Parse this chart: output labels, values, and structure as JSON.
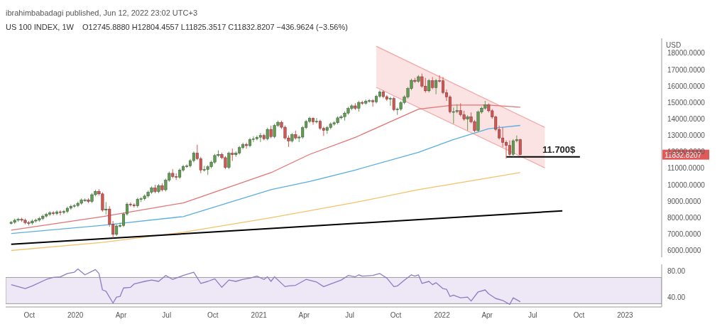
{
  "chart_data": [
    {
      "type": "candlestick",
      "title": "US 100 INDEX, 1W",
      "subtitle": "O12745.8880 H12804.4557 L11825.3517 C11832.8207 −436.9624 (−3.56%)",
      "ylabel": "USD",
      "annotations": [
        "ibrahimbabadagi published, Jun 12, 2022 23:02 UTC+3",
        {
          "text": "11.700$",
          "x": "2022-08-22",
          "y": 11700
        },
        "11832.8207"
      ],
      "xlim": [
        "2019-08-15",
        "2023-03-15"
      ],
      "ylim": [
        5600,
        18900
      ],
      "yticks": [
        {
          "value": 6000,
          "label": "6000.0000"
        },
        {
          "value": 7000,
          "label": "7000.0000"
        },
        {
          "value": 8000,
          "label": "8000.0000"
        },
        {
          "value": 9000,
          "label": "9000.0000"
        },
        {
          "value": 10000,
          "label": "10000.0000"
        },
        {
          "value": 11000,
          "label": "11000.0000"
        },
        {
          "value": 12000,
          "label": "12000.0000"
        },
        {
          "value": 13000,
          "label": "13000.0000"
        },
        {
          "value": 14000,
          "label": "14000.0000"
        },
        {
          "value": 15000,
          "label": "15000.0000"
        },
        {
          "value": 16000,
          "label": "16000.0000"
        },
        {
          "value": 17000,
          "label": "17000.0000"
        },
        {
          "value": 18000,
          "label": "18000.0000"
        }
      ],
      "tick_labels": "y",
      "series": [
        {
          "type": "line",
          "color": "#f4a3a3",
          "x": [
            "2021-08-23",
            "2022-07-25"
          ],
          "values": [
            18420,
            13490
          ],
          "lower": [
            15920,
            11030
          ],
          "upper": [
            18420,
            13490
          ]
        },
        {
          "type": "line",
          "color": "#f4a3a3",
          "x": [
            "2021-08-23",
            "2022-07-25"
          ],
          "values": [
            15920,
            11030
          ]
        },
        {
          "type": "line",
          "color": "#e57373",
          "x": [
            "2019-08-26",
            "2020-02-24",
            "2020-08-03",
            "2021-01-25",
            "2021-04-12",
            "2021-07-12",
            "2021-11-15",
            "2022-01-24",
            "2022-04-04",
            "2022-06-06"
          ],
          "values": [
            7250,
            8070,
            8900,
            10740,
            11850,
            12880,
            14600,
            14850,
            14850,
            14720
          ]
        },
        {
          "type": "line",
          "color": "#5aaee0",
          "x": [
            "2019-08-26",
            "2020-02-24",
            "2020-08-03",
            "2021-01-25",
            "2021-04-12",
            "2021-07-12",
            "2021-11-15",
            "2022-01-24",
            "2022-04-04",
            "2022-06-06"
          ],
          "values": [
            7040,
            7540,
            8070,
            9710,
            10200,
            10900,
            11970,
            12750,
            13410,
            13610
          ]
        },
        {
          "type": "line",
          "color": "#f5c26b",
          "x": [
            "2019-08-26",
            "2020-02-24",
            "2020-08-03",
            "2021-01-25",
            "2021-07-12",
            "2021-11-15",
            "2022-06-06"
          ],
          "values": [
            6010,
            6500,
            7120,
            8000,
            8930,
            9710,
            10740
          ]
        },
        {
          "type": "line",
          "color": "#000000",
          "x": [
            "2019-08-26",
            "2022-08-29"
          ],
          "values": [
            6390,
            8420
          ]
        },
        {
          "type": "line",
          "color": "#000000",
          "x": [
            "2022-05-09",
            "2022-10-03"
          ],
          "values": [
            11700,
            11700
          ]
        },
        {
          "color": "#5e9e4f",
          "x": [
            "2019-08-26",
            "2019-09-02",
            "2019-09-09",
            "2019-10-07",
            "2019-10-14",
            "2019-10-21",
            "2019-10-28",
            "2019-11-04",
            "2019-11-11",
            "2019-11-25",
            "2019-12-09",
            "2019-12-16",
            "2019-12-23",
            "2019-12-30",
            "2020-01-06",
            "2020-01-13",
            "2020-01-20",
            "2020-02-03",
            "2020-02-10",
            "2020-03-02",
            "2020-03-23",
            "2020-03-30",
            "2020-04-06",
            "2020-04-13",
            "2020-05-04",
            "2020-05-11",
            "2020-05-18",
            "2020-05-25",
            "2020-06-01",
            "2020-06-15",
            "2020-06-29",
            "2020-07-06",
            "2020-07-27",
            "2020-08-03",
            "2020-08-10",
            "2020-08-17",
            "2020-08-24",
            "2020-09-14",
            "2020-09-21",
            "2020-09-28",
            "2020-10-05",
            "2020-10-12",
            "2020-11-02",
            "2020-11-16",
            "2020-11-23",
            "2020-11-30",
            "2020-12-14",
            "2020-12-21",
            "2020-12-28",
            "2021-01-04",
            "2021-01-18",
            "2021-02-01",
            "2021-02-08",
            "2021-03-08",
            "2021-03-22",
            "2021-03-29",
            "2021-04-05",
            "2021-04-12",
            "2021-04-26",
            "2021-05-17",
            "2021-05-24",
            "2021-05-31",
            "2021-06-07",
            "2021-06-14",
            "2021-06-21",
            "2021-06-28",
            "2021-07-05",
            "2021-07-19",
            "2021-08-02",
            "2021-08-09",
            "2021-08-23",
            "2021-08-30",
            "2021-09-20",
            "2021-10-04",
            "2021-10-11",
            "2021-10-18",
            "2021-10-25",
            "2021-11-01",
            "2021-11-15",
            "2021-12-06",
            "2021-12-20",
            "2022-01-24",
            "2022-01-31",
            "2022-02-21",
            "2022-03-14",
            "2022-03-21",
            "2022-03-28",
            "2022-05-23",
            "2022-05-30"
          ],
          "ohlc": [
            [
              7650,
              7800,
              7590,
              7720
            ],
            [
              7720,
              7950,
              7620,
              7850
            ],
            [
              7850,
              8000,
              7750,
              7900
            ],
            [
              7680,
              7900,
              7580,
              7800
            ],
            [
              7800,
              7950,
              7700,
              7850
            ],
            [
              7850,
              8050,
              7750,
              7950
            ],
            [
              7950,
              8200,
              7850,
              8100
            ],
            [
              8100,
              8300,
              8000,
              8200
            ],
            [
              8200,
              8400,
              8100,
              8300
            ],
            [
              8250,
              8460,
              8150,
              8360
            ],
            [
              8320,
              8480,
              8220,
              8380
            ],
            [
              8380,
              8680,
              8280,
              8580
            ],
            [
              8580,
              8800,
              8480,
              8700
            ],
            [
              8700,
              8840,
              8600,
              8740
            ],
            [
              8740,
              8980,
              8640,
              8880
            ],
            [
              8880,
              9170,
              8780,
              9070
            ],
            [
              9070,
              9180,
              8970,
              9080
            ],
            [
              8990,
              9500,
              8890,
              9400
            ],
            [
              9400,
              9700,
              9300,
              9600
            ],
            [
              8460,
              8950,
              8200,
              8530
            ],
            [
              6990,
              7600,
              6890,
              7500
            ],
            [
              7500,
              7700,
              7400,
              7530
            ],
            [
              7530,
              8330,
              7430,
              8230
            ],
            [
              8230,
              8930,
              8130,
              8830
            ],
            [
              8720,
              9220,
              8620,
              9120
            ],
            [
              9120,
              9250,
              8950,
              9150
            ],
            [
              9150,
              9420,
              9050,
              9320
            ],
            [
              9320,
              9650,
              9220,
              9550
            ],
            [
              9550,
              9910,
              9450,
              9810
            ],
            [
              9590,
              10050,
              9490,
              9950
            ],
            [
              9700,
              10380,
              9600,
              10280
            ],
            [
              10280,
              10800,
              10180,
              10700
            ],
            [
              10460,
              11000,
              10360,
              10900
            ],
            [
              10900,
              11220,
              10800,
              11120
            ],
            [
              11120,
              11250,
              11020,
              11150
            ],
            [
              11150,
              11570,
              11050,
              11470
            ],
            [
              11470,
              12030,
              11370,
              11930
            ],
            [
              10900,
              11150,
              10800,
              10930
            ],
            [
              10930,
              11200,
              10600,
              11100
            ],
            [
              11100,
              11480,
              11000,
              11380
            ],
            [
              11380,
              11880,
              11280,
              11780
            ],
            [
              11780,
              12100,
              11680,
              11850
            ],
            [
              11050,
              12020,
              10950,
              11920
            ],
            [
              11830,
              12030,
              11700,
              11930
            ],
            [
              11930,
              12360,
              11830,
              12260
            ],
            [
              12260,
              12560,
              12160,
              12460
            ],
            [
              12380,
              12860,
              12280,
              12760
            ],
            [
              12760,
              12950,
              12600,
              12800
            ],
            [
              12800,
              13000,
              12700,
              12890
            ],
            [
              12890,
              13150,
              12600,
              13000
            ],
            [
              12800,
              13470,
              12700,
              13370
            ],
            [
              12930,
              13710,
              12830,
              13610
            ],
            [
              13610,
              13900,
              13510,
              13800
            ],
            [
              12670,
              13160,
              12570,
              13060
            ],
            [
              12850,
              13000,
              12600,
              12900
            ],
            [
              12900,
              13580,
              12800,
              13480
            ],
            [
              13480,
              13950,
              13380,
              13850
            ],
            [
              13850,
              14140,
              13750,
              14040
            ],
            [
              13830,
              14060,
              13730,
              13860
            ],
            [
              13310,
              13580,
              13100,
              13480
            ],
            [
              13480,
              13790,
              13380,
              13690
            ],
            [
              13690,
              13870,
              13590,
              13770
            ],
            [
              13770,
              14170,
              13670,
              14070
            ],
            [
              14070,
              14240,
              13970,
              14140
            ],
            [
              14140,
              14460,
              13900,
              14360
            ],
            [
              14360,
              14740,
              14260,
              14640
            ],
            [
              14640,
              14900,
              14540,
              14800
            ],
            [
              14650,
              15110,
              14450,
              15010
            ],
            [
              14960,
              15190,
              14860,
              15090
            ],
            [
              15090,
              15210,
              14990,
              15110
            ],
            [
              15040,
              15470,
              14940,
              15370
            ],
            [
              15370,
              15750,
              15270,
              15650
            ],
            [
              15200,
              15350,
              14800,
              15250
            ],
            [
              14570,
              14700,
              14250,
              14600
            ],
            [
              14600,
              15100,
              14500,
              15000
            ],
            [
              15000,
              15440,
              14900,
              15340
            ],
            [
              15340,
              15950,
              15240,
              15850
            ],
            [
              15850,
              16450,
              15750,
              16350
            ],
            [
              16290,
              16670,
              16190,
              16570
            ],
            [
              15710,
              16430,
              15610,
              16330
            ],
            [
              15910,
              16440,
              15500,
              16340
            ],
            [
              14440,
              14700,
              13720,
              14450
            ],
            [
              14450,
              14900,
              14350,
              14510
            ],
            [
              13990,
              14230,
              13300,
              14130
            ],
            [
              13300,
              14520,
              13200,
              14420
            ],
            [
              14420,
              14760,
              14320,
              14660
            ],
            [
              14660,
              15100,
              14560,
              14850
            ],
            [
              11850,
              12780,
              11700,
              12680
            ],
            [
              12680,
              13000,
              12580,
              12746
            ]
          ]
        },
        {
          "color": "#d9534f",
          "x": [
            "2019-09-16",
            "2019-09-23",
            "2019-09-30",
            "2019-11-18",
            "2019-12-02",
            "2020-01-27",
            "2020-02-17",
            "2020-02-24",
            "2020-03-09",
            "2020-03-16",
            "2020-04-20",
            "2020-04-27",
            "2020-06-08",
            "2020-06-22",
            "2020-07-13",
            "2020-07-20",
            "2020-08-31",
            "2020-09-07",
            "2020-10-19",
            "2020-10-26",
            "2020-11-09",
            "2020-12-07",
            "2021-01-11",
            "2021-01-25",
            "2021-02-15",
            "2021-02-22",
            "2021-03-01",
            "2021-03-15",
            "2021-04-19",
            "2021-05-03",
            "2021-05-10",
            "2021-07-12",
            "2021-07-26",
            "2021-08-16",
            "2021-09-06",
            "2021-09-13",
            "2021-09-27",
            "2021-11-08",
            "2021-11-22",
            "2021-11-29",
            "2021-12-13",
            "2021-12-27",
            "2022-01-03",
            "2022-01-10",
            "2022-01-17",
            "2022-02-07",
            "2022-02-14",
            "2022-02-28",
            "2022-03-07",
            "2022-04-04",
            "2022-04-11",
            "2022-04-18",
            "2022-04-25",
            "2022-05-02",
            "2022-05-09",
            "2022-05-16",
            "2022-06-06"
          ],
          "ohlc": [
            [
              7900,
              8000,
              7750,
              7850
            ],
            [
              7850,
              7950,
              7600,
              7700
            ],
            [
              7700,
              7800,
              7530,
              7680
            ],
            [
              8300,
              8400,
              8150,
              8250
            ],
            [
              8360,
              8460,
              8150,
              8320
            ],
            [
              9080,
              9180,
              8890,
              8990
            ],
            [
              9600,
              9740,
              9350,
              9450
            ],
            [
              9450,
              9550,
              8360,
              8460
            ],
            [
              8530,
              8700,
              7450,
              7600
            ],
            [
              7600,
              7800,
              6770,
              6990
            ],
            [
              8830,
              8930,
              8680,
              8780
            ],
            [
              8780,
              8880,
              8620,
              8720
            ],
            [
              9810,
              10000,
              9490,
              9590
            ],
            [
              9950,
              10100,
              9600,
              9700
            ],
            [
              10700,
              10950,
              10400,
              10500
            ],
            [
              10500,
              10700,
              10300,
              10460
            ],
            [
              11930,
              12440,
              11500,
              11590
            ],
            [
              11590,
              11700,
              10710,
              10900
            ],
            [
              11850,
              11950,
              11550,
              11650
            ],
            [
              11650,
              11750,
              10950,
              11050
            ],
            [
              11920,
              12200,
              11450,
              11830
            ],
            [
              12460,
              12560,
              12200,
              12380
            ],
            [
              13000,
              13100,
              12700,
              12800
            ],
            [
              13370,
              13600,
              12830,
              12930
            ],
            [
              13800,
              13900,
              13400,
              13500
            ],
            [
              13500,
              13600,
              12750,
              12850
            ],
            [
              12850,
              13000,
              12300,
              12670
            ],
            [
              13060,
              13300,
              12750,
              12850
            ],
            [
              14040,
              14100,
              13650,
              13830
            ],
            [
              13860,
              13960,
              13330,
              13430
            ],
            [
              13430,
              13530,
              12970,
              13310
            ],
            [
              14800,
              14960,
              14550,
              14650
            ],
            [
              15010,
              15110,
              14860,
              14960
            ],
            [
              15110,
              15210,
              14750,
              15040
            ],
            [
              15650,
              15750,
              15260,
              15360
            ],
            [
              15360,
              15460,
              15100,
              15200
            ],
            [
              15250,
              15350,
              14470,
              14570
            ],
            [
              16350,
              16500,
              16190,
              16290
            ],
            [
              16570,
              16760,
              15900,
              16000
            ],
            [
              16000,
              16500,
              15600,
              15710
            ],
            [
              16330,
              16550,
              15810,
              15910
            ],
            [
              16340,
              16660,
              16220,
              16320
            ],
            [
              16320,
              16560,
              15510,
              15610
            ],
            [
              15610,
              15800,
              15100,
              15340
            ],
            [
              15340,
              15440,
              14340,
              14440
            ],
            [
              14510,
              14950,
              14160,
              14260
            ],
            [
              14260,
              14500,
              13890,
              13990
            ],
            [
              14130,
              14400,
              13740,
              13840
            ],
            [
              13840,
              13940,
              13200,
              13300
            ],
            [
              14850,
              14950,
              14400,
              14500
            ],
            [
              14500,
              14600,
              14020,
              14120
            ],
            [
              14120,
              14200,
              13270,
              13370
            ],
            [
              13370,
              13600,
              12750,
              12850
            ],
            [
              12850,
              13500,
              12300,
              12580
            ],
            [
              12580,
              12700,
              11600,
              12390
            ],
            [
              12390,
              12700,
              11750,
              11850
            ],
            [
              12745.888,
              12804.4557,
              11825.3517,
              11832.8207
            ]
          ]
        }
      ]
    },
    {
      "type": "line",
      "color": "#8e7cc3",
      "x": [
        "2019-08-26",
        "2019-09-23",
        "2019-10-07",
        "2019-11-04",
        "2019-11-18",
        "2019-12-02",
        "2019-12-16",
        "2019-12-30",
        "2020-01-06",
        "2020-01-20",
        "2020-02-10",
        "2020-02-17",
        "2020-02-24",
        "2020-03-02",
        "2020-03-16",
        "2020-03-23",
        "2020-03-30",
        "2020-04-06",
        "2020-04-20",
        "2020-04-27",
        "2020-05-18",
        "2020-06-01",
        "2020-06-15",
        "2020-06-29",
        "2020-07-13",
        "2020-08-03",
        "2020-08-24",
        "2020-09-07",
        "2020-09-21",
        "2020-10-05",
        "2020-10-19",
        "2020-11-02",
        "2020-11-16",
        "2020-11-30",
        "2020-12-14",
        "2020-12-28",
        "2021-01-11",
        "2021-01-18",
        "2021-01-25",
        "2021-02-01",
        "2021-02-22",
        "2021-03-01",
        "2021-03-15",
        "2021-04-05",
        "2021-04-26",
        "2021-05-10",
        "2021-05-24",
        "2021-06-14",
        "2021-06-28",
        "2021-07-12",
        "2021-07-19",
        "2021-07-26",
        "2021-08-16",
        "2021-08-30",
        "2021-09-13",
        "2021-09-27",
        "2021-10-04",
        "2021-10-18",
        "2021-11-01",
        "2021-11-08",
        "2021-11-15",
        "2021-11-22",
        "2021-12-06",
        "2021-12-13",
        "2021-12-20",
        "2022-01-03",
        "2022-01-10",
        "2022-01-17",
        "2022-01-24",
        "2022-02-07",
        "2022-02-21",
        "2022-02-28",
        "2022-03-14",
        "2022-03-28",
        "2022-04-04",
        "2022-04-18",
        "2022-05-02",
        "2022-05-16",
        "2022-05-23",
        "2022-06-06"
      ],
      "values": [
        59,
        53,
        57,
        67,
        70,
        71,
        76,
        78,
        83,
        74,
        82,
        76,
        51,
        49,
        31,
        40,
        41,
        54,
        55,
        60,
        64,
        66,
        64,
        73,
        67,
        73,
        78,
        61,
        64,
        68,
        55,
        66,
        64,
        67,
        69,
        72,
        67,
        71,
        64,
        71,
        56,
        57,
        58,
        67,
        63,
        56,
        60,
        66,
        73,
        71,
        74,
        72,
        73,
        76,
        69,
        56,
        57,
        66,
        74,
        72,
        74,
        61,
        64,
        59,
        62,
        53,
        52,
        41,
        43,
        39,
        40,
        34,
        48,
        51,
        45,
        38,
        35,
        29,
        39,
        33
      ],
      "xlim": [
        "2019-08-15",
        "2023-03-15"
      ],
      "xticks": [
        {
          "value": "2019-10-01",
          "label": "Oct"
        },
        {
          "value": "2020-01-01",
          "label": "2020"
        },
        {
          "value": "2020-04-01",
          "label": "Apr"
        },
        {
          "value": "2020-07-01",
          "label": "Jul"
        },
        {
          "value": "2020-10-01",
          "label": "Oct"
        },
        {
          "value": "2021-01-01",
          "label": "2021"
        },
        {
          "value": "2021-04-01",
          "label": "Apr"
        },
        {
          "value": "2021-07-01",
          "label": "Jul"
        },
        {
          "value": "2021-10-01",
          "label": "Oct"
        },
        {
          "value": "2022-01-01",
          "label": "2022"
        },
        {
          "value": "2022-04-01",
          "label": "Apr"
        },
        {
          "value": "2022-07-01",
          "label": "Jul"
        },
        {
          "value": "2022-10-01",
          "label": "Oct"
        },
        {
          "value": "2023-01-01",
          "label": "2023"
        }
      ],
      "ylim": [
        25,
        90
      ],
      "yticks": [
        {
          "value": 80,
          "label": "80.00"
        },
        {
          "value": 40,
          "label": "40.00"
        }
      ],
      "bands": [
        {
          "axis": "y",
          "from": 30,
          "to": 70,
          "color": "#ede7f6"
        }
      ]
    }
  ]
}
